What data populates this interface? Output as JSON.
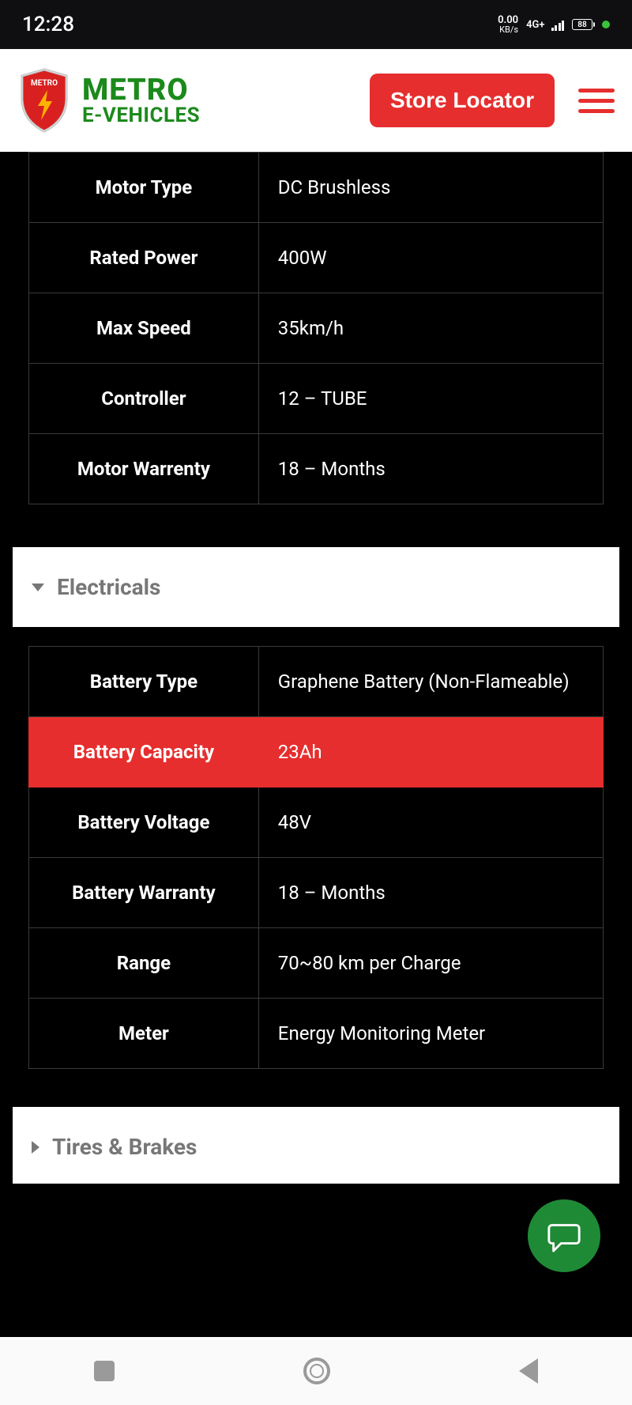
{
  "statusbar": {
    "time": "12:28",
    "net_speed": "0.00",
    "net_unit": "KB/s",
    "net_type": "4G+",
    "battery": "88"
  },
  "header": {
    "brand_top": "METRO",
    "brand_bottom": "E-VEHICLES",
    "shield_text": "METRO",
    "store_button": "Store Locator"
  },
  "sections": {
    "motor": {
      "rows": [
        {
          "label": "Motor Type",
          "value": "DC Brushless"
        },
        {
          "label": "Rated Power",
          "value": "400W"
        },
        {
          "label": "Max Speed",
          "value": "35km/h"
        },
        {
          "label": "Controller",
          "value": "12 – TUBE"
        },
        {
          "label": "Motor Warrenty",
          "value": "18 – Months"
        }
      ]
    },
    "electricals": {
      "title": "Electricals",
      "rows": [
        {
          "label": "Battery Type",
          "value": "Graphene Battery (Non-Flameable)",
          "highlight": false
        },
        {
          "label": "Battery Capacity",
          "value": "23Ah",
          "highlight": true
        },
        {
          "label": "Battery Voltage",
          "value": "48V",
          "highlight": false
        },
        {
          "label": "Battery Warranty",
          "value": "18 – Months",
          "highlight": false
        },
        {
          "label": "Range",
          "value": "70~80 km per Charge",
          "highlight": false
        },
        {
          "label": "Meter",
          "value": "Energy Monitoring Meter",
          "highlight": false
        }
      ]
    },
    "tires_brakes": {
      "title": "Tires & Brakes"
    }
  },
  "colors": {
    "accent_red": "#e62e2e",
    "brand_green": "#1b8a1b",
    "chat_green": "#1f8a36",
    "table_border": "#3a3a3a",
    "bg": "#000000",
    "header_bg": "#ffffff"
  }
}
